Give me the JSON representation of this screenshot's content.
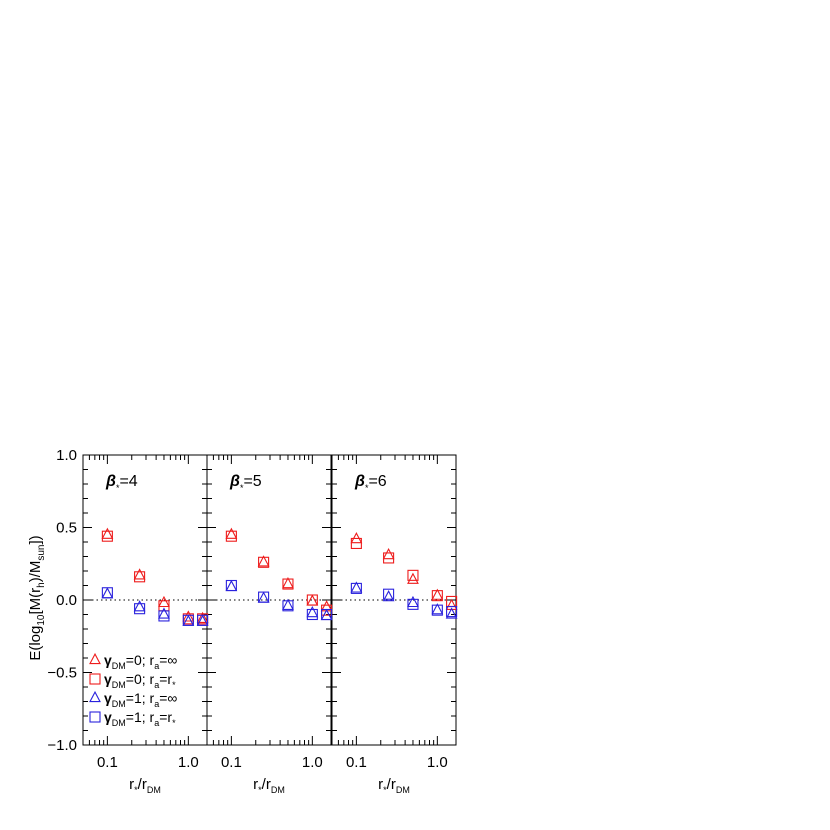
{
  "chart_data": {
    "type": "scatter",
    "ylabel": "E(log10[M(rh)/Msun])",
    "ylim": [
      -1.0,
      1.0
    ],
    "xscale": "log",
    "xlim": [
      0.05,
      1.7
    ],
    "y_ticks": [
      "1.0",
      "0.5",
      "0.0",
      "−0.5",
      "−1.0"
    ],
    "y_tick_values": [
      1.0,
      0.5,
      0.0,
      -0.5,
      -1.0
    ],
    "x_ticks": [
      "0.1",
      "1.0"
    ],
    "x_tick_values": [
      0.1,
      1.0
    ],
    "xlabel": "r*/rDM",
    "reference_line": {
      "y": 0.0,
      "style": "dotted"
    },
    "legend": {
      "placement": "lower-left",
      "entries": [
        {
          "marker": "triangle",
          "color": "#ee1c1c",
          "label": "γDM=0; ra=∞"
        },
        {
          "marker": "square",
          "color": "#ee1c1c",
          "label": "γDM=0; ra=r*"
        },
        {
          "marker": "triangle",
          "color": "#2a22dd",
          "label": "γDM=1; ra=∞"
        },
        {
          "marker": "square",
          "color": "#2a22dd",
          "label": "γDM=1; ra=r*"
        }
      ]
    },
    "x": [
      0.1,
      0.25,
      0.5,
      1.0,
      1.5
    ],
    "panels": [
      {
        "title": "β*=4",
        "series": [
          {
            "marker": "triangle",
            "color": "#ee1c1c",
            "values": [
              0.45,
              0.17,
              -0.02,
              -0.12,
              -0.13
            ]
          },
          {
            "marker": "square",
            "color": "#ee1c1c",
            "values": [
              0.44,
              0.16,
              -0.04,
              -0.13,
              -0.13
            ]
          },
          {
            "marker": "triangle",
            "color": "#2a22dd",
            "values": [
              0.04,
              -0.05,
              -0.1,
              -0.15,
              -0.15
            ]
          },
          {
            "marker": "square",
            "color": "#2a22dd",
            "values": [
              0.05,
              -0.06,
              -0.11,
              -0.14,
              -0.14
            ]
          }
        ]
      },
      {
        "title": "β*=5",
        "series": [
          {
            "marker": "triangle",
            "color": "#ee1c1c",
            "values": [
              0.45,
              0.26,
              0.11,
              -0.01,
              -0.05
            ]
          },
          {
            "marker": "square",
            "color": "#ee1c1c",
            "values": [
              0.44,
              0.26,
              0.11,
              0.0,
              -0.07
            ]
          },
          {
            "marker": "triangle",
            "color": "#2a22dd",
            "values": [
              0.09,
              0.01,
              -0.04,
              -0.09,
              -0.11
            ]
          },
          {
            "marker": "square",
            "color": "#2a22dd",
            "values": [
              0.1,
              0.02,
              -0.04,
              -0.1,
              -0.1
            ]
          }
        ]
      },
      {
        "title": "β*=6",
        "series": [
          {
            "marker": "triangle",
            "color": "#ee1c1c",
            "values": [
              0.42,
              0.31,
              0.14,
              0.03,
              -0.04
            ]
          },
          {
            "marker": "square",
            "color": "#ee1c1c",
            "values": [
              0.39,
              0.29,
              0.17,
              0.03,
              -0.01
            ]
          },
          {
            "marker": "triangle",
            "color": "#2a22dd",
            "values": [
              0.08,
              0.02,
              -0.02,
              -0.07,
              -0.1
            ]
          },
          {
            "marker": "square",
            "color": "#2a22dd",
            "values": [
              0.08,
              0.04,
              -0.03,
              -0.07,
              -0.08
            ]
          }
        ]
      }
    ]
  }
}
